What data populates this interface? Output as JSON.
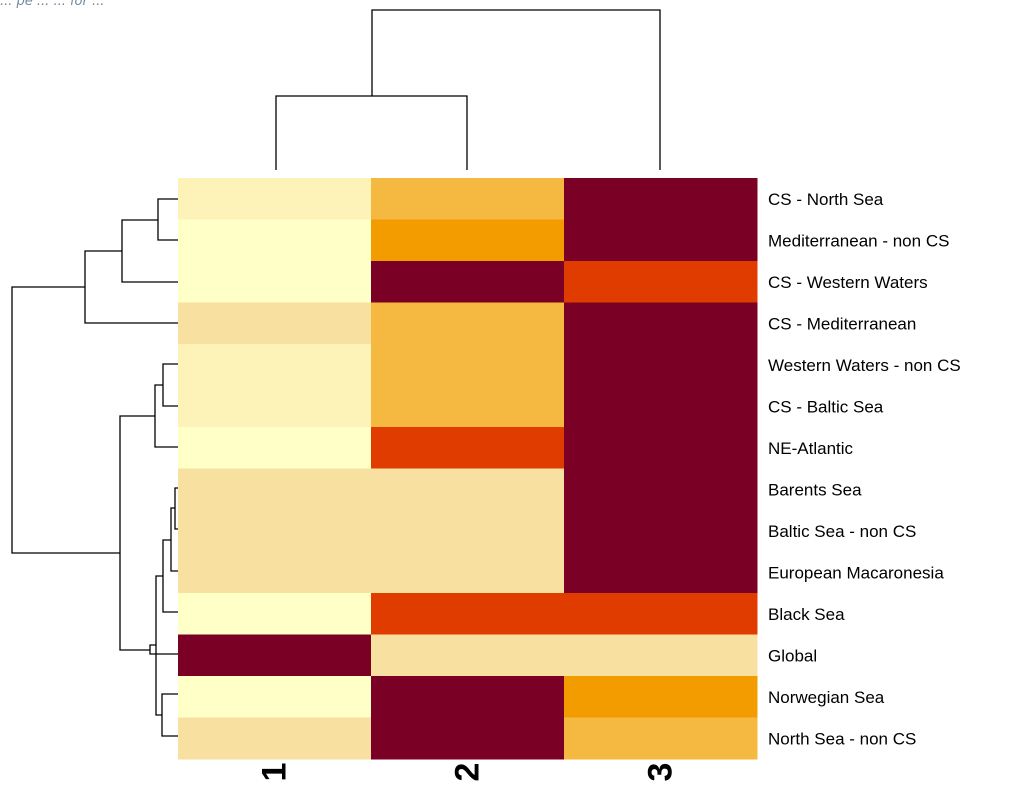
{
  "caption": "... pe ... ... for ...",
  "chart_data": {
    "type": "heatmap",
    "columns": [
      "1",
      "2",
      "3"
    ],
    "rows": [
      "CS - North Sea",
      "Mediterranean - non CS",
      "CS - Western Waters",
      "CS - Mediterranean",
      "Western Waters - non CS",
      "CS - Baltic Sea",
      "NE-Atlantic",
      "Barents Sea",
      "Baltic Sea - non CS",
      "European Macaronesia",
      "Black Sea",
      "Global",
      "Norwegian Sea",
      "North Sea - non CS"
    ],
    "values": [
      [
        1,
        3,
        6
      ],
      [
        0,
        4,
        6
      ],
      [
        0,
        5.5,
        5
      ],
      [
        2,
        3,
        6
      ],
      [
        1,
        3,
        6
      ],
      [
        1,
        3,
        6
      ],
      [
        0,
        4.5,
        5.7
      ],
      [
        2,
        2,
        6
      ],
      [
        2,
        2,
        6
      ],
      [
        2,
        2,
        6
      ],
      [
        0,
        5,
        5
      ],
      [
        6,
        2,
        2
      ],
      [
        0,
        6,
        4
      ],
      [
        2,
        6,
        3
      ]
    ],
    "value_range": [
      0,
      6
    ],
    "color_scale": [
      "#ffffc8",
      "#fdf2b8",
      "#f8e0a0",
      "#f5b942",
      "#f29c00",
      "#e03c00",
      "#7a0025"
    ],
    "dendrogram": "rows and columns clustered"
  }
}
